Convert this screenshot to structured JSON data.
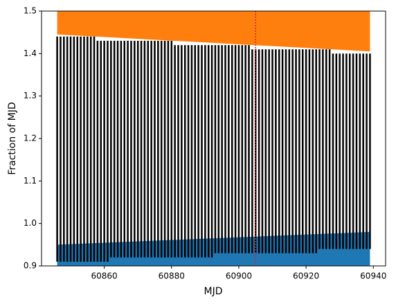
{
  "chart_data": {
    "type": "night-segments",
    "xlabel": "MJD",
    "ylabel": "Fraction of MJD",
    "xlim": [
      60841.35,
      60943.65
    ],
    "ylim": [
      0.9,
      1.5
    ],
    "xticks": [
      60860,
      60880,
      60900,
      60920,
      60940
    ],
    "yticks": [
      0.9,
      {
        "value": 1,
        "label": "1.0"
      },
      1.1,
      1.2,
      1.3,
      1.4,
      1.5
    ],
    "bands": [
      {
        "color": "#ff7f0e",
        "x": [
          60846,
          60939
        ],
        "lower": [
          1.445,
          1.405
        ],
        "upper": [
          1.5,
          1.5
        ]
      },
      {
        "color": "#1f77b4",
        "x": [
          60846,
          60939
        ],
        "lower": [
          0.9,
          0.9
        ],
        "upper": [
          0.95,
          0.98
        ]
      }
    ],
    "segments": {
      "color": "#000000",
      "x": [
        60846,
        60847,
        60848,
        60849,
        60850,
        60851,
        60852,
        60853,
        60854,
        60855,
        60856,
        60857,
        60858,
        60859,
        60860,
        60861,
        60862,
        60863,
        60864,
        60865,
        60866,
        60867,
        60868,
        60869,
        60870,
        60871,
        60872,
        60873,
        60874,
        60875,
        60876,
        60877,
        60878,
        60879,
        60880,
        60881,
        60882,
        60883,
        60884,
        60885,
        60886,
        60887,
        60888,
        60889,
        60890,
        60891,
        60892,
        60893,
        60894,
        60895,
        60896,
        60897,
        60898,
        60899,
        60900,
        60901,
        60902,
        60903,
        60904,
        60905,
        60906,
        60907,
        60908,
        60909,
        60910,
        60911,
        60912,
        60913,
        60914,
        60915,
        60916,
        60917,
        60918,
        60919,
        60920,
        60921,
        60922,
        60923,
        60924,
        60925,
        60926,
        60927,
        60928,
        60929,
        60930,
        60931,
        60932,
        60933,
        60934,
        60935,
        60936,
        60937,
        60938,
        60939
      ],
      "low": [
        0.91,
        0.91,
        0.91,
        0.91,
        0.91,
        0.91,
        0.91,
        0.91,
        0.91,
        0.91,
        0.91,
        0.91,
        0.91,
        0.91,
        0.91,
        0.91,
        0.92,
        0.92,
        0.92,
        0.92,
        0.92,
        0.92,
        0.92,
        0.92,
        0.92,
        0.92,
        0.92,
        0.92,
        0.92,
        0.92,
        0.92,
        0.92,
        0.92,
        0.92,
        0.92,
        0.92,
        0.92,
        0.92,
        0.92,
        0.92,
        0.92,
        0.92,
        0.92,
        0.92,
        0.92,
        0.92,
        0.92,
        0.93,
        0.93,
        0.93,
        0.93,
        0.93,
        0.93,
        0.93,
        0.93,
        0.93,
        0.93,
        0.93,
        0.93,
        0.93,
        0.93,
        0.93,
        0.93,
        0.93,
        0.93,
        0.93,
        0.93,
        0.93,
        0.93,
        0.93,
        0.93,
        0.93,
        0.93,
        0.93,
        0.93,
        0.93,
        0.93,
        0.93,
        0.94,
        0.94,
        0.94,
        0.94,
        0.94,
        0.94,
        0.94,
        0.94,
        0.94,
        0.94,
        0.94,
        0.94,
        0.94,
        0.94,
        0.94,
        0.94
      ],
      "high": [
        1.44,
        1.44,
        1.44,
        1.44,
        1.44,
        1.44,
        1.44,
        1.44,
        1.44,
        1.44,
        1.44,
        1.44,
        1.43,
        1.43,
        1.43,
        1.43,
        1.43,
        1.43,
        1.43,
        1.43,
        1.43,
        1.43,
        1.43,
        1.43,
        1.43,
        1.43,
        1.43,
        1.43,
        1.43,
        1.43,
        1.43,
        1.43,
        1.43,
        1.43,
        1.43,
        1.42,
        1.42,
        1.42,
        1.42,
        1.42,
        1.42,
        1.42,
        1.42,
        1.42,
        1.42,
        1.42,
        1.42,
        1.42,
        1.42,
        1.42,
        1.42,
        1.42,
        1.42,
        1.42,
        1.42,
        1.42,
        1.42,
        1.42,
        1.41,
        1.41,
        1.41,
        1.41,
        1.41,
        1.41,
        1.41,
        1.41,
        1.41,
        1.41,
        1.41,
        1.41,
        1.41,
        1.41,
        1.41,
        1.41,
        1.41,
        1.41,
        1.41,
        1.41,
        1.41,
        1.41,
        1.41,
        1.41,
        1.4,
        1.4,
        1.4,
        1.4,
        1.4,
        1.4,
        1.4,
        1.4,
        1.4,
        1.4,
        1.4,
        1.4
      ]
    },
    "vline": {
      "x": 60905,
      "color": "#d62728"
    }
  }
}
